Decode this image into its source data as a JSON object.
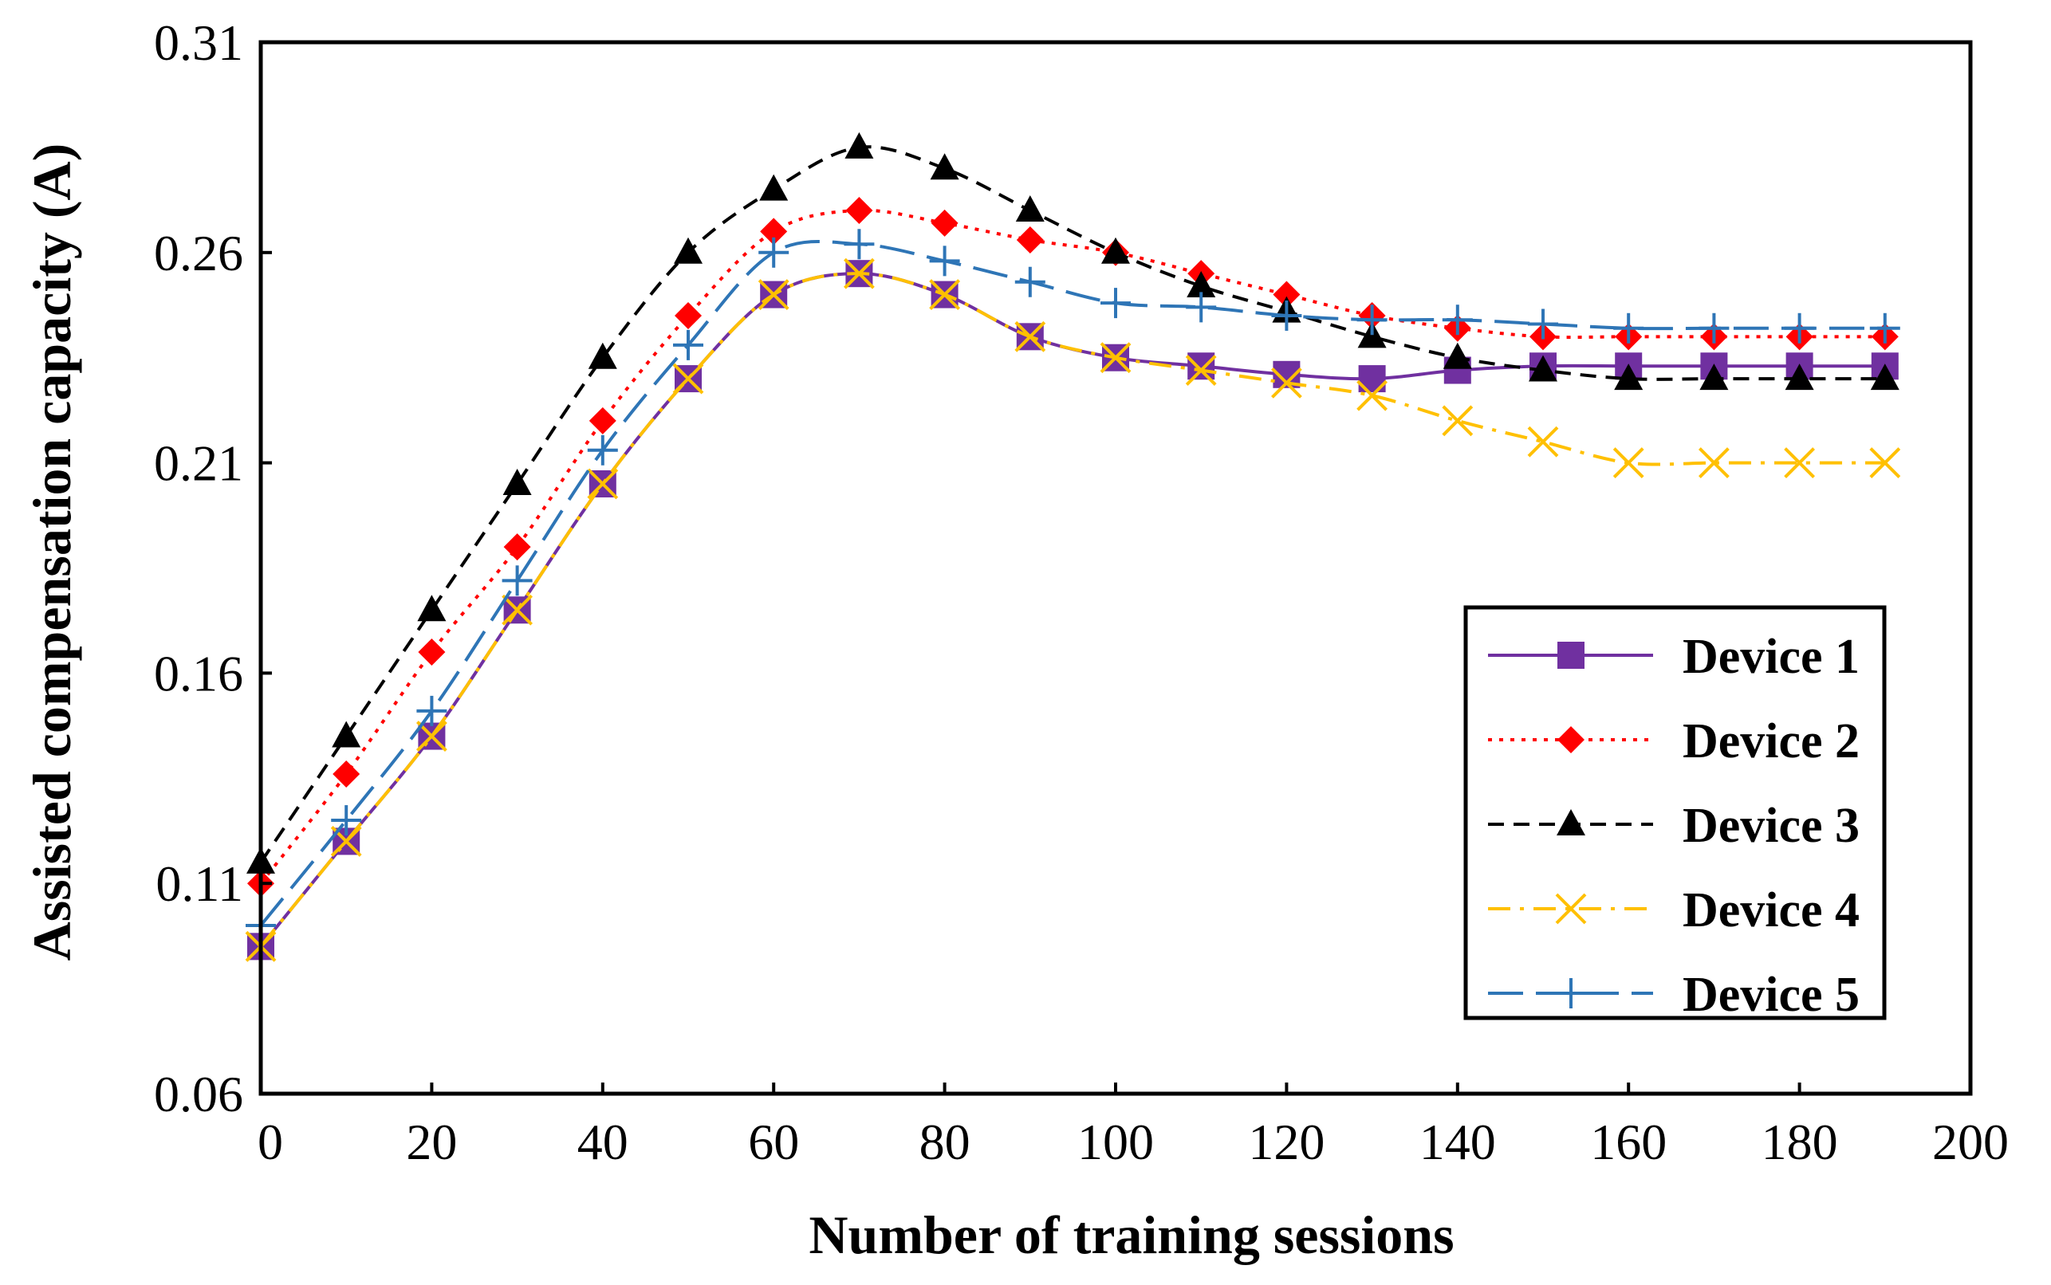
{
  "chart_data": {
    "type": "line",
    "title": "",
    "xlabel": "Number of training sessions",
    "ylabel": "Assisted compensation capacity (A)",
    "xlim": [
      0,
      200
    ],
    "ylim": [
      0.06,
      0.31
    ],
    "xticks": [
      "0",
      "20",
      "40",
      "60",
      "80",
      "100",
      "120",
      "140",
      "160",
      "180",
      "200"
    ],
    "yticks": [
      "0.06",
      "0.11",
      "0.16",
      "0.21",
      "0.26",
      "0.31"
    ],
    "grid": false,
    "legend_position": "bottom-right",
    "x": [
      0,
      10,
      20,
      30,
      40,
      50,
      60,
      70,
      80,
      90,
      100,
      110,
      120,
      130,
      140,
      150,
      160,
      170,
      180,
      190
    ],
    "series": [
      {
        "name": "Device 1",
        "color": "#7030a0",
        "marker": "square",
        "dash": "solid",
        "values": [
          0.095,
          0.12,
          0.145,
          0.175,
          0.205,
          0.23,
          0.25,
          0.255,
          0.25,
          0.24,
          0.235,
          0.233,
          0.231,
          0.23,
          0.232,
          0.233,
          0.233,
          0.233,
          0.233,
          0.233
        ]
      },
      {
        "name": "Device 2",
        "color": "#ff0000",
        "marker": "diamond",
        "dash": "dotted",
        "values": [
          0.11,
          0.136,
          0.165,
          0.19,
          0.22,
          0.245,
          0.265,
          0.27,
          0.267,
          0.263,
          0.26,
          0.255,
          0.25,
          0.245,
          0.242,
          0.24,
          0.24,
          0.24,
          0.24,
          0.24
        ]
      },
      {
        "name": "Device 3",
        "color": "#000000",
        "marker": "triangle",
        "dash": "dashed",
        "values": [
          0.115,
          0.145,
          0.175,
          0.205,
          0.235,
          0.26,
          0.275,
          0.285,
          0.28,
          0.27,
          0.26,
          0.252,
          0.246,
          0.24,
          0.235,
          0.232,
          0.23,
          0.23,
          0.23,
          0.23
        ]
      },
      {
        "name": "Device 4",
        "color": "#ffc000",
        "marker": "x",
        "dash": "dashdot",
        "values": [
          0.095,
          0.12,
          0.145,
          0.175,
          0.205,
          0.23,
          0.25,
          0.255,
          0.25,
          0.24,
          0.235,
          0.232,
          0.229,
          0.226,
          0.22,
          0.215,
          0.21,
          0.21,
          0.21,
          0.21
        ]
      },
      {
        "name": "Device 5",
        "color": "#2e75b6",
        "marker": "plus",
        "dash": "longdash",
        "values": [
          0.1,
          0.125,
          0.151,
          0.182,
          0.213,
          0.238,
          0.26,
          0.262,
          0.258,
          0.253,
          0.248,
          0.247,
          0.245,
          0.244,
          0.244,
          0.243,
          0.242,
          0.242,
          0.242,
          0.242
        ]
      }
    ]
  }
}
